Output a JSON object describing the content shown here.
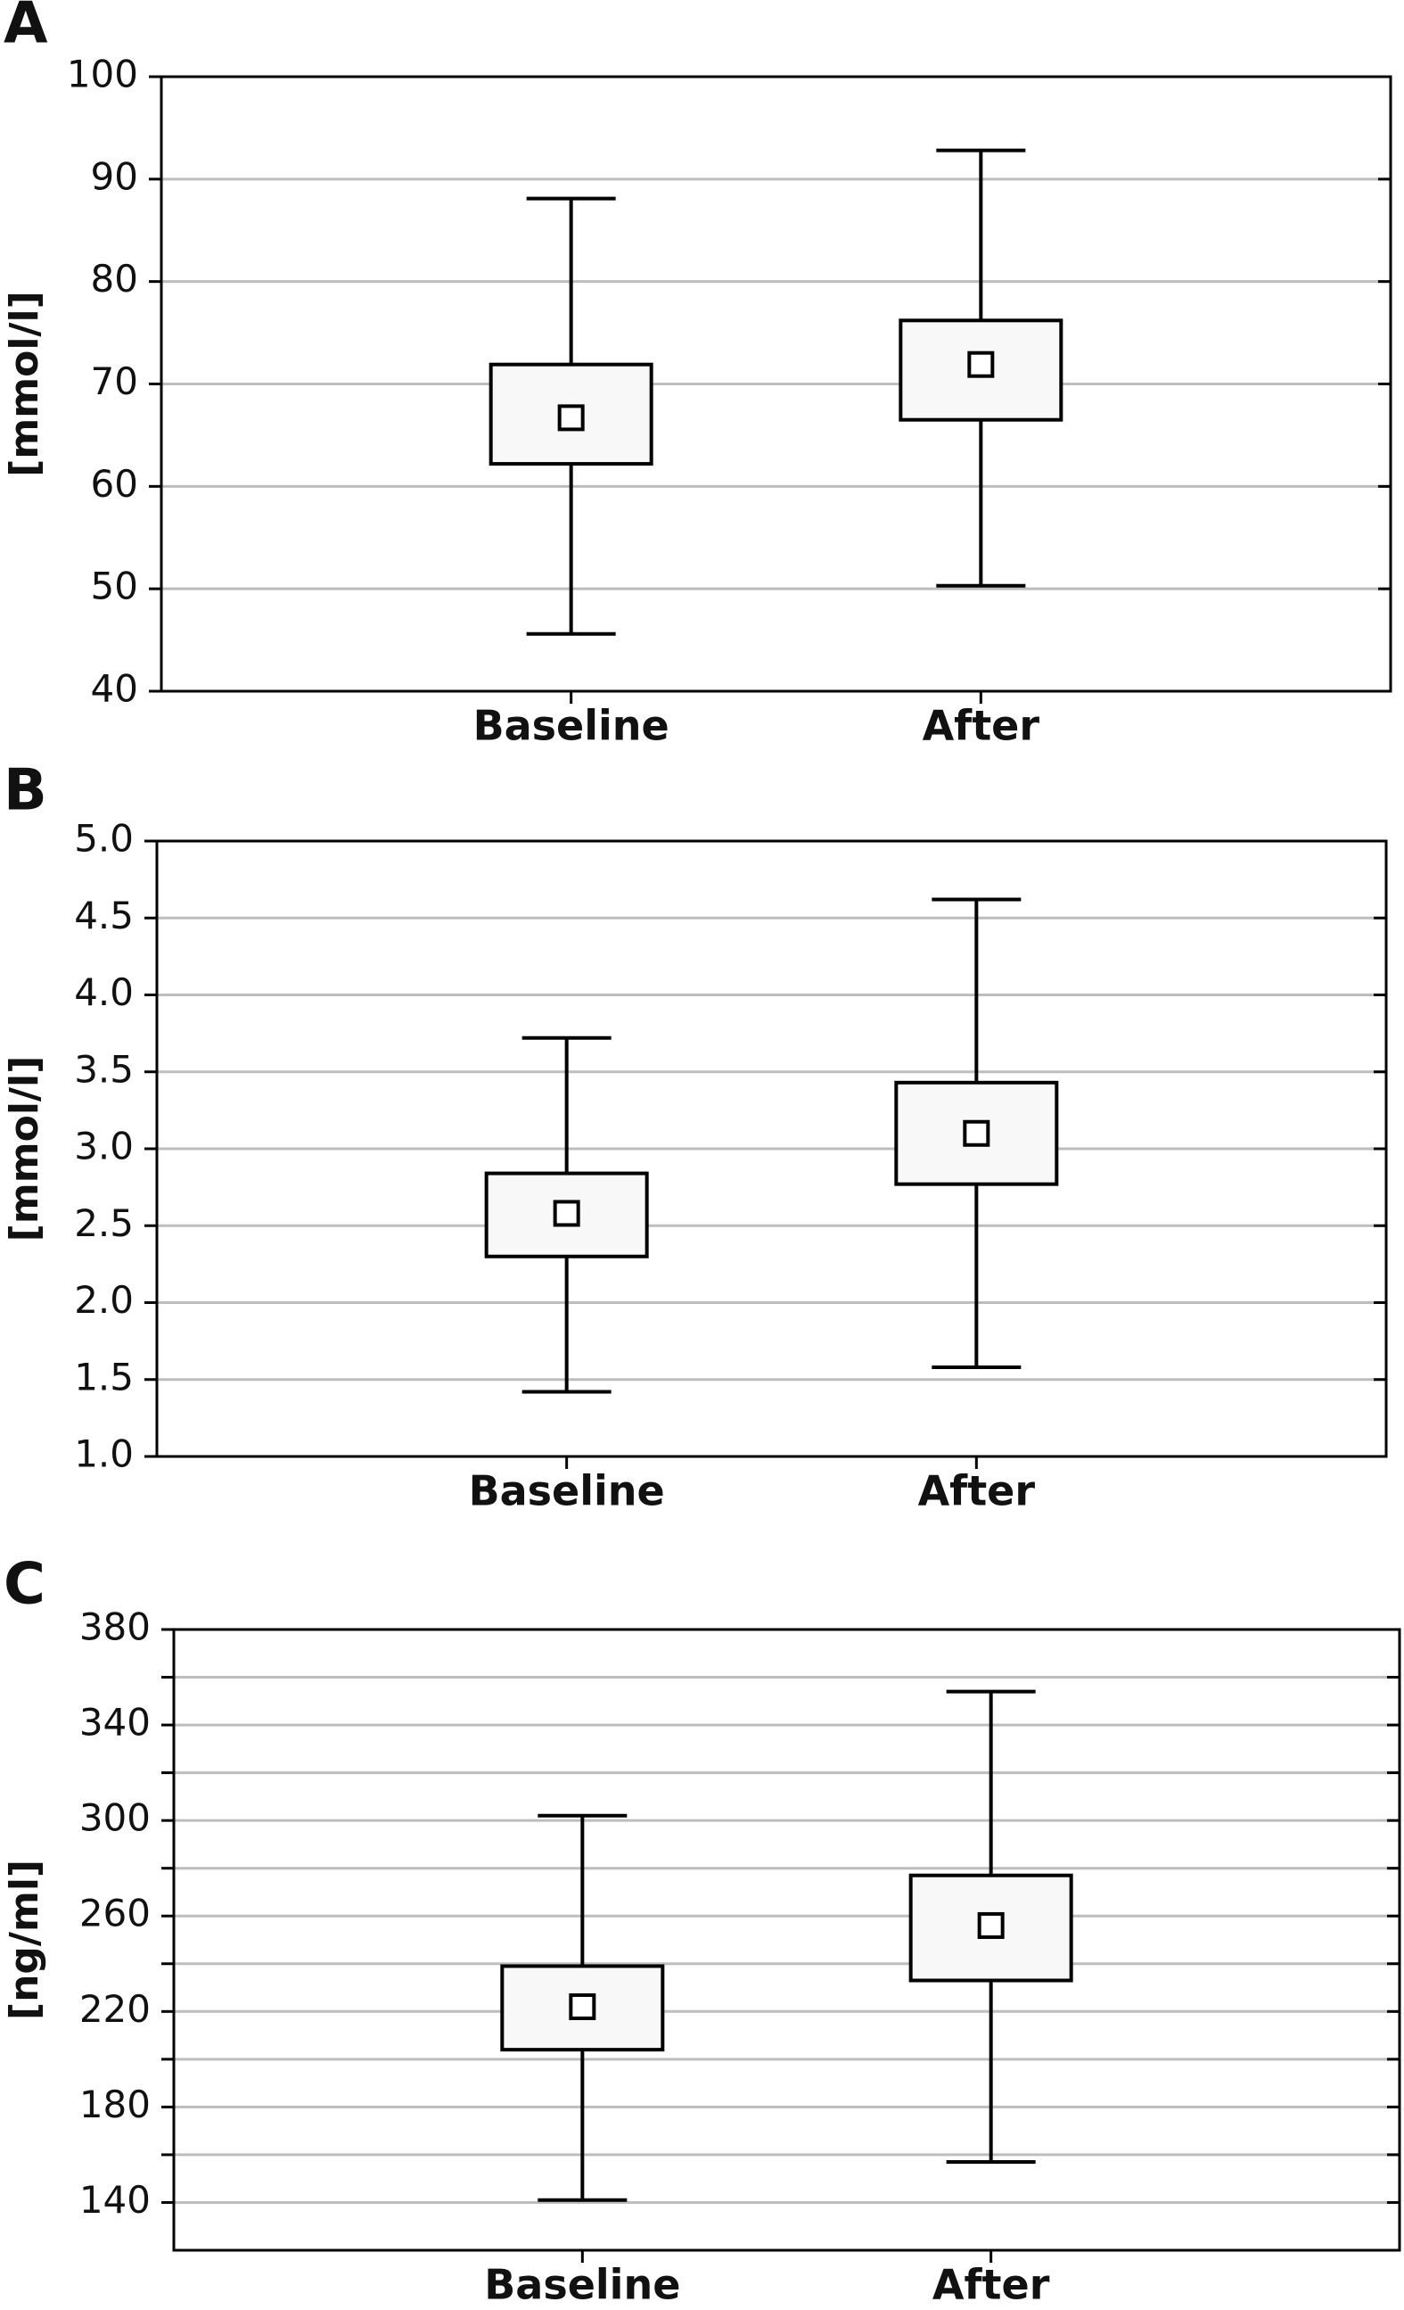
{
  "chart_data": [
    {
      "type": "box",
      "label": "A",
      "y_label": "[mmol/l]",
      "categories": [
        "Baseline",
        "After"
      ],
      "whisker_low": [
        45.6,
        50.3
      ],
      "box_low": [
        62.2,
        66.5
      ],
      "mean": [
        66.7,
        71.9
      ],
      "box_high": [
        71.9,
        76.2
      ],
      "whisker_high": [
        88.1,
        92.8
      ],
      "ylim": [
        40,
        100
      ],
      "yticks": [
        40,
        50,
        60,
        70,
        80,
        90,
        100
      ],
      "grid": true,
      "color": "#000000"
    },
    {
      "type": "box",
      "label": "B",
      "y_label": "[mmol/l]",
      "categories": [
        "Baseline",
        "After"
      ],
      "whisker_low": [
        1.42,
        1.58
      ],
      "box_low": [
        2.3,
        2.77
      ],
      "mean": [
        2.58,
        3.1
      ],
      "box_high": [
        2.84,
        3.43
      ],
      "whisker_high": [
        3.72,
        4.62
      ],
      "ylim": [
        1.0,
        5.0
      ],
      "yticks": [
        {
          "value": 1.0,
          "label": "1.0"
        },
        {
          "value": 1.5,
          "label": "1.5"
        },
        {
          "value": 2.0,
          "label": "2.0"
        },
        {
          "value": 2.5,
          "label": "2.5"
        },
        {
          "value": 3.0,
          "label": "3.0"
        },
        {
          "value": 3.5,
          "label": "3.5"
        },
        {
          "value": 4.0,
          "label": "4.0"
        },
        {
          "value": 4.5,
          "label": "4.5"
        },
        {
          "value": 5.0,
          "label": "5.0"
        }
      ],
      "grid": true,
      "color": "#000000"
    },
    {
      "type": "box",
      "label": "C",
      "y_label": "[ng/ml]",
      "categories": [
        "Baseline",
        "After"
      ],
      "whisker_low": [
        141,
        157
      ],
      "box_low": [
        204,
        233
      ],
      "mean": [
        222,
        256
      ],
      "box_high": [
        239,
        277
      ],
      "whisker_high": [
        302,
        354
      ],
      "ylim": [
        120,
        380
      ],
      "yticks": [
        140,
        180,
        220,
        260,
        300,
        340,
        380
      ],
      "minor_yticks": [
        160,
        200,
        240,
        280,
        320,
        360
      ],
      "grid": true,
      "color": "#000000"
    }
  ]
}
